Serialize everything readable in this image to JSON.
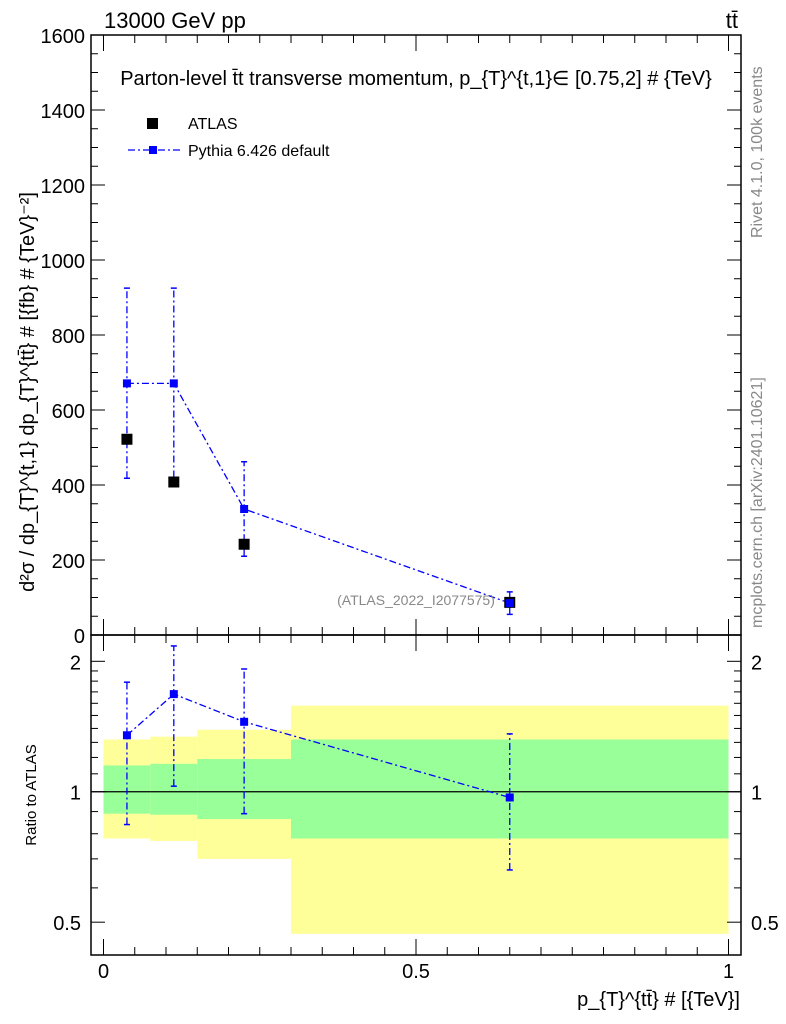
{
  "header": {
    "left": "13000 GeV pp",
    "right": "tt̄"
  },
  "side": {
    "rivet": "Rivet 4.1.0,  100k events",
    "mcplots": "mcplots.cern.ch [arXiv:2401.10621]"
  },
  "chart_data": [
    {
      "type": "scatter",
      "title": "Parton-level t̄t transverse momentum, p_{T}^{t,1}∈ [0.75,2] # {TeV}",
      "ylabel": "d²σ / dp_{T}^{t,1} dp_{T}^{tt̄} # [{fb} # {TeV}⁻²]",
      "xlim": [
        -0.02,
        1.02
      ],
      "ylim": [
        0,
        1600
      ],
      "yticks": [
        0,
        200,
        400,
        600,
        800,
        1000,
        1200,
        1400,
        1600
      ],
      "watermark": "(ATLAS_2022_I2077575)",
      "legend": {
        "position": "top-left",
        "entries": [
          "ATLAS",
          "Pythia 6.426 default"
        ]
      },
      "series": [
        {
          "name": "ATLAS",
          "color": "#000000",
          "marker": "square",
          "points": [
            {
              "x": 0.0375,
              "y": 522
            },
            {
              "x": 0.1125,
              "y": 408
            },
            {
              "x": 0.225,
              "y": 242
            },
            {
              "x": 0.65,
              "y": 87
            }
          ]
        },
        {
          "name": "Pythia 6.426 default",
          "color": "#0000ff",
          "marker": "square",
          "line": "dash-dot",
          "points": [
            {
              "x": 0.0375,
              "y": 671,
              "lo": 418,
              "hi": 925
            },
            {
              "x": 0.1125,
              "y": 671,
              "lo": 420,
              "hi": 925
            },
            {
              "x": 0.225,
              "y": 336,
              "lo": 210,
              "hi": 462
            },
            {
              "x": 0.65,
              "y": 85,
              "lo": 55,
              "hi": 115
            }
          ]
        }
      ]
    },
    {
      "type": "scatter",
      "ylabel": "Ratio to ATLAS",
      "xlabel": "p_{T}^{tt̄} # [{TeV}]",
      "xlim": [
        -0.02,
        1.02
      ],
      "ylim": [
        0.42,
        2.3
      ],
      "ylog": true,
      "yticks": [
        0.5,
        1,
        2
      ],
      "xticks": [
        0,
        0.5,
        1
      ],
      "bands": [
        {
          "x0": 0.0,
          "x1": 0.075,
          "inner": [
            0.89,
            1.15
          ],
          "outer": [
            0.78,
            1.32
          ]
        },
        {
          "x0": 0.075,
          "x1": 0.15,
          "inner": [
            0.885,
            1.16
          ],
          "outer": [
            0.77,
            1.34
          ]
        },
        {
          "x0": 0.15,
          "x1": 0.3,
          "inner": [
            0.865,
            1.19
          ],
          "outer": [
            0.7,
            1.39
          ]
        },
        {
          "x0": 0.3,
          "x1": 1.0,
          "inner": [
            0.78,
            1.32
          ],
          "outer": [
            0.47,
            1.58
          ]
        }
      ],
      "band_colors": {
        "inner": "#99ff99",
        "outer": "#ffff99"
      },
      "series": [
        {
          "name": "Pythia 6.426 default",
          "color": "#0000ff",
          "line": "dash-dot",
          "points": [
            {
              "x": 0.0375,
              "y": 1.35,
              "lo": 0.84,
              "hi": 1.79
            },
            {
              "x": 0.1125,
              "y": 1.68,
              "lo": 1.03,
              "hi": 2.17
            },
            {
              "x": 0.225,
              "y": 1.45,
              "lo": 0.89,
              "hi": 1.92
            },
            {
              "x": 0.65,
              "y": 0.97,
              "lo": 0.66,
              "hi": 1.36
            }
          ]
        }
      ]
    }
  ]
}
